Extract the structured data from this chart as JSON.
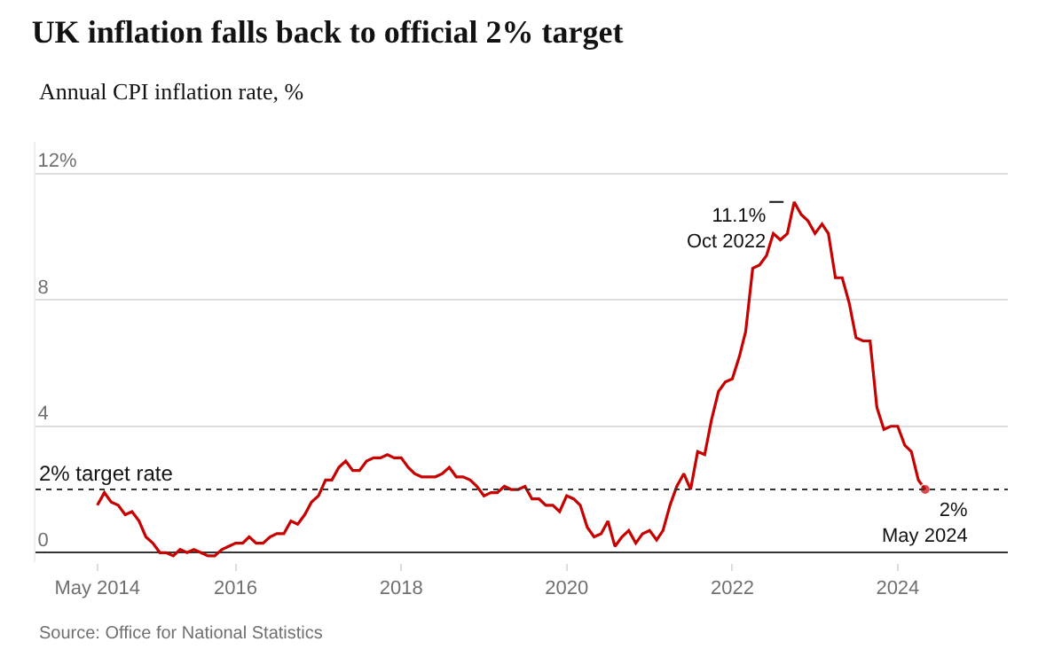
{
  "chart_data": {
    "type": "line",
    "title": "UK inflation falls back to official 2% target",
    "subtitle": "Annual CPI inflation rate, %",
    "x": [
      "2014-05",
      "2014-06",
      "2014-07",
      "2014-08",
      "2014-09",
      "2014-10",
      "2014-11",
      "2014-12",
      "2015-01",
      "2015-02",
      "2015-03",
      "2015-04",
      "2015-05",
      "2015-06",
      "2015-07",
      "2015-08",
      "2015-09",
      "2015-10",
      "2015-11",
      "2015-12",
      "2016-01",
      "2016-02",
      "2016-03",
      "2016-04",
      "2016-05",
      "2016-06",
      "2016-07",
      "2016-08",
      "2016-09",
      "2016-10",
      "2016-11",
      "2016-12",
      "2017-01",
      "2017-02",
      "2017-03",
      "2017-04",
      "2017-05",
      "2017-06",
      "2017-07",
      "2017-08",
      "2017-09",
      "2017-10",
      "2017-11",
      "2017-12",
      "2018-01",
      "2018-02",
      "2018-03",
      "2018-04",
      "2018-05",
      "2018-06",
      "2018-07",
      "2018-08",
      "2018-09",
      "2018-10",
      "2018-11",
      "2018-12",
      "2019-01",
      "2019-02",
      "2019-03",
      "2019-04",
      "2019-05",
      "2019-06",
      "2019-07",
      "2019-08",
      "2019-09",
      "2019-10",
      "2019-11",
      "2019-12",
      "2020-01",
      "2020-02",
      "2020-03",
      "2020-04",
      "2020-05",
      "2020-06",
      "2020-07",
      "2020-08",
      "2020-09",
      "2020-10",
      "2020-11",
      "2020-12",
      "2021-01",
      "2021-02",
      "2021-03",
      "2021-04",
      "2021-05",
      "2021-06",
      "2021-07",
      "2021-08",
      "2021-09",
      "2021-10",
      "2021-11",
      "2021-12",
      "2022-01",
      "2022-02",
      "2022-03",
      "2022-04",
      "2022-05",
      "2022-06",
      "2022-07",
      "2022-08",
      "2022-09",
      "2022-10",
      "2022-11",
      "2022-12",
      "2023-01",
      "2023-02",
      "2023-03",
      "2023-04",
      "2023-05",
      "2023-06",
      "2023-07",
      "2023-08",
      "2023-09",
      "2023-10",
      "2023-11",
      "2023-12",
      "2024-01",
      "2024-02",
      "2024-03",
      "2024-04",
      "2024-05"
    ],
    "series": [
      {
        "color": "#c70000",
        "values": [
          1.5,
          1.9,
          1.6,
          1.5,
          1.2,
          1.3,
          1.0,
          0.5,
          0.3,
          0.0,
          0.0,
          -0.1,
          0.1,
          0.0,
          0.1,
          0.0,
          -0.1,
          -0.1,
          0.1,
          0.2,
          0.3,
          0.3,
          0.5,
          0.3,
          0.3,
          0.5,
          0.6,
          0.6,
          1.0,
          0.9,
          1.2,
          1.6,
          1.8,
          2.3,
          2.3,
          2.7,
          2.9,
          2.6,
          2.6,
          2.9,
          3.0,
          3.0,
          3.1,
          3.0,
          3.0,
          2.7,
          2.5,
          2.4,
          2.4,
          2.4,
          2.5,
          2.7,
          2.4,
          2.4,
          2.3,
          2.1,
          1.8,
          1.9,
          1.9,
          2.1,
          2.0,
          2.0,
          2.1,
          1.7,
          1.7,
          1.5,
          1.5,
          1.3,
          1.8,
          1.7,
          1.5,
          0.8,
          0.5,
          0.6,
          1.0,
          0.2,
          0.5,
          0.7,
          0.3,
          0.6,
          0.7,
          0.4,
          0.7,
          1.5,
          2.1,
          2.5,
          2.0,
          3.2,
          3.1,
          4.2,
          5.1,
          5.4,
          5.5,
          6.2,
          7.0,
          9.0,
          9.1,
          9.4,
          10.1,
          9.9,
          10.1,
          11.1,
          10.7,
          10.5,
          10.1,
          10.4,
          10.1,
          8.7,
          8.7,
          7.9,
          6.8,
          6.7,
          6.7,
          4.6,
          3.9,
          4.0,
          4.0,
          3.4,
          3.2,
          2.3,
          2.0
        ]
      }
    ],
    "xlim": [
      "2013-08",
      "2025-05"
    ],
    "xticks": [
      {
        "value": "2014-05",
        "label": "May 2014"
      },
      {
        "value": "2016-01",
        "label": "2016"
      },
      {
        "value": "2018-01",
        "label": "2018"
      },
      {
        "value": "2020-01",
        "label": "2020"
      },
      {
        "value": "2022-01",
        "label": "2022"
      },
      {
        "value": "2024-01",
        "label": "2024"
      }
    ],
    "ylim": [
      -0.3,
      13
    ],
    "yticks": [
      0,
      4,
      8,
      {
        "value": 12,
        "label": "12%"
      }
    ],
    "grid": "y",
    "ref_lines": [
      {
        "axis": "y",
        "value": 2,
        "label": "2% target rate",
        "color": "#333333",
        "line_style": "dotted"
      }
    ],
    "annotations": [
      {
        "text": "11.1%\nOct 2022",
        "x": "2022-10",
        "y": 11.1
      },
      {
        "text": "2%\nMay 2024",
        "x": "2024-05",
        "y": 2.0
      },
      "Source: Office for National Statistics"
    ]
  }
}
